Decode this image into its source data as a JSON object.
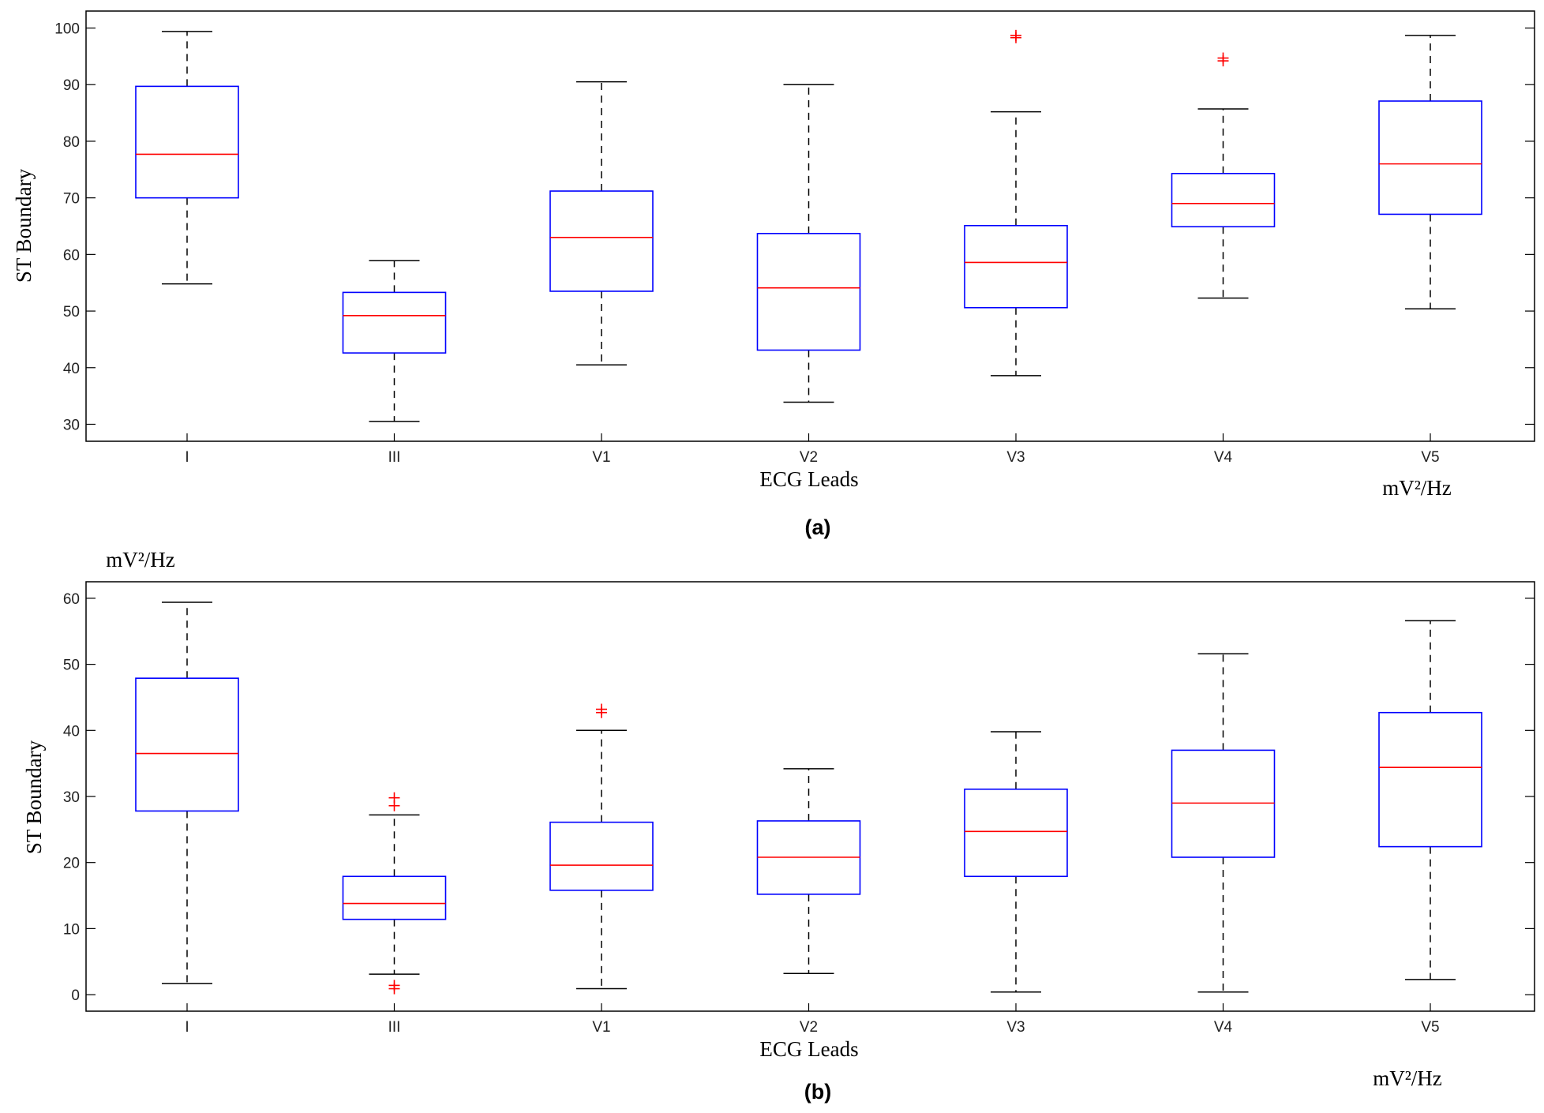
{
  "chart_data": [
    {
      "type": "box",
      "panel_label": "(a)",
      "xlabel": "ECG Leads",
      "ylabel": "ST Boundary",
      "unit_label": "mV²/Hz",
      "categories": [
        "I",
        "III",
        "V1",
        "V2",
        "V3",
        "V4",
        "V5"
      ],
      "ylim": [
        27,
        103
      ],
      "yticks": [
        30,
        40,
        50,
        60,
        70,
        80,
        90,
        100
      ],
      "grid": false,
      "box_color": "#0000ff",
      "median_color": "#ff0000",
      "whisker_color": "#000000",
      "outlier_color": "#ff0000",
      "boxes": [
        {
          "category": "I",
          "whisker_low": 54.8,
          "q1": 70.0,
          "median": 77.7,
          "q3": 89.7,
          "whisker_high": 99.4,
          "outliers": []
        },
        {
          "category": "III",
          "whisker_low": 30.5,
          "q1": 42.6,
          "median": 49.2,
          "q3": 53.3,
          "whisker_high": 58.9,
          "outliers": []
        },
        {
          "category": "V1",
          "whisker_low": 40.5,
          "q1": 53.5,
          "median": 63.0,
          "q3": 71.2,
          "whisker_high": 90.5,
          "outliers": []
        },
        {
          "category": "V2",
          "whisker_low": 33.9,
          "q1": 43.1,
          "median": 54.1,
          "q3": 63.7,
          "whisker_high": 90.0,
          "outliers": []
        },
        {
          "category": "V3",
          "whisker_low": 38.6,
          "q1": 50.6,
          "median": 58.6,
          "q3": 65.1,
          "whisker_high": 85.2,
          "outliers": [
            98.3,
            98.7
          ]
        },
        {
          "category": "V4",
          "whisker_low": 52.3,
          "q1": 64.9,
          "median": 69.0,
          "q3": 74.3,
          "whisker_high": 85.7,
          "outliers": [
            94.2,
            94.7
          ]
        },
        {
          "category": "V5",
          "whisker_low": 50.4,
          "q1": 67.1,
          "median": 76.0,
          "q3": 87.1,
          "whisker_high": 98.7,
          "outliers": []
        }
      ]
    },
    {
      "type": "box",
      "panel_label": "(b)",
      "xlabel": "ECG Leads",
      "ylabel": "ST Boundary",
      "unit_label": "mV²/Hz",
      "unit_label_2": "mV²/Hz",
      "categories": [
        "I",
        "III",
        "V1",
        "V2",
        "V3",
        "V4",
        "V5"
      ],
      "ylim": [
        -2.5,
        62.5
      ],
      "yticks": [
        0,
        10,
        20,
        30,
        40,
        50,
        60
      ],
      "grid": false,
      "box_color": "#0000ff",
      "median_color": "#ff0000",
      "whisker_color": "#000000",
      "outlier_color": "#ff0000",
      "boxes": [
        {
          "category": "I",
          "whisker_low": 1.7,
          "q1": 27.8,
          "median": 36.5,
          "q3": 47.9,
          "whisker_high": 59.4,
          "outliers": []
        },
        {
          "category": "III",
          "whisker_low": 3.1,
          "q1": 11.4,
          "median": 13.8,
          "q3": 17.9,
          "whisker_high": 27.2,
          "outliers": [
            0.9,
            1.4,
            28.6,
            29.8
          ]
        },
        {
          "category": "V1",
          "whisker_low": 0.9,
          "q1": 15.8,
          "median": 19.6,
          "q3": 26.1,
          "whisker_high": 40.0,
          "outliers": [
            42.7,
            43.2
          ]
        },
        {
          "category": "V2",
          "whisker_low": 3.2,
          "q1": 15.2,
          "median": 20.8,
          "q3": 26.3,
          "whisker_high": 34.2,
          "outliers": []
        },
        {
          "category": "V3",
          "whisker_low": 0.4,
          "q1": 17.9,
          "median": 24.7,
          "q3": 31.1,
          "whisker_high": 39.8,
          "outliers": []
        },
        {
          "category": "V4",
          "whisker_low": 0.4,
          "q1": 20.8,
          "median": 29.0,
          "q3": 37.0,
          "whisker_high": 51.6,
          "outliers": []
        },
        {
          "category": "V5",
          "whisker_low": 2.3,
          "q1": 22.4,
          "median": 34.4,
          "q3": 42.7,
          "whisker_high": 56.6,
          "outliers": []
        }
      ]
    }
  ]
}
